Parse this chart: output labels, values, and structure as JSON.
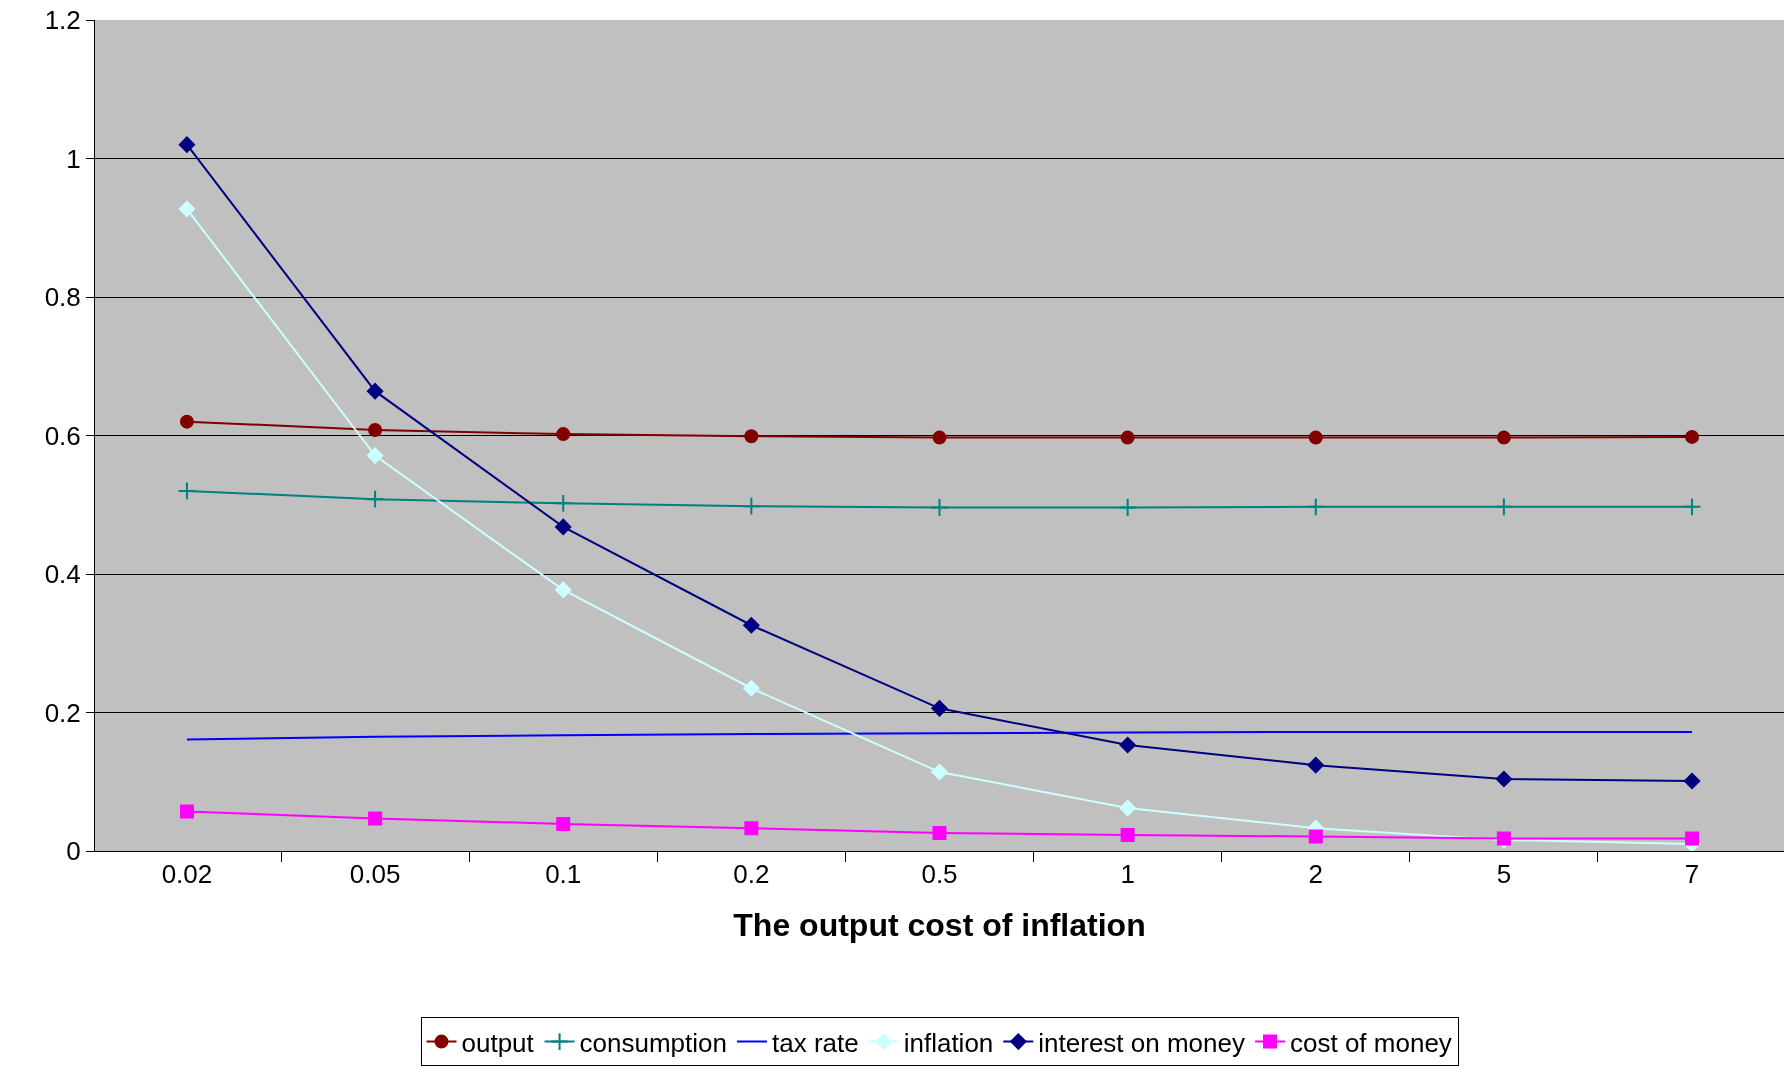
{
  "chart_data": {
    "type": "line",
    "xlabel": "The output cost of inflation",
    "categories": [
      "0.02",
      "0.05",
      "0.1",
      "0.2",
      "0.5",
      "1",
      "2",
      "5",
      "7"
    ],
    "ylim": [
      0,
      1.2
    ],
    "yticks": [
      0,
      0.2,
      0.4,
      0.6,
      0.8,
      1,
      1.2
    ],
    "grid": "y",
    "legend": "bottom",
    "series": [
      {
        "name": "output",
        "color": "#800000",
        "marker": "circle",
        "values": [
          0.62,
          0.608,
          0.602,
          0.599,
          0.597,
          0.597,
          0.597,
          0.597,
          0.598
        ]
      },
      {
        "name": "consumption",
        "color": "#008080",
        "marker": "cross",
        "values": [
          0.52,
          0.508,
          0.502,
          0.498,
          0.496,
          0.496,
          0.497,
          0.497,
          0.497
        ]
      },
      {
        "name": "tax rate",
        "color": "#0000ff",
        "marker": "none",
        "values": [
          0.161,
          0.165,
          0.167,
          0.169,
          0.17,
          0.171,
          0.172,
          0.172,
          0.172
        ]
      },
      {
        "name": "inflation",
        "color": "#ccffff",
        "marker": "diamond",
        "values": [
          0.927,
          0.571,
          0.377,
          0.235,
          0.114,
          0.062,
          0.033,
          0.016,
          0.01
        ]
      },
      {
        "name": "interest on money",
        "color": "#000080",
        "marker": "diamond",
        "values": [
          1.02,
          0.664,
          0.468,
          0.326,
          0.206,
          0.153,
          0.124,
          0.104,
          0.101
        ]
      },
      {
        "name": "cost of money",
        "color": "#ff00ff",
        "marker": "square",
        "values": [
          0.057,
          0.047,
          0.039,
          0.033,
          0.026,
          0.023,
          0.021,
          0.018,
          0.018
        ]
      }
    ]
  }
}
